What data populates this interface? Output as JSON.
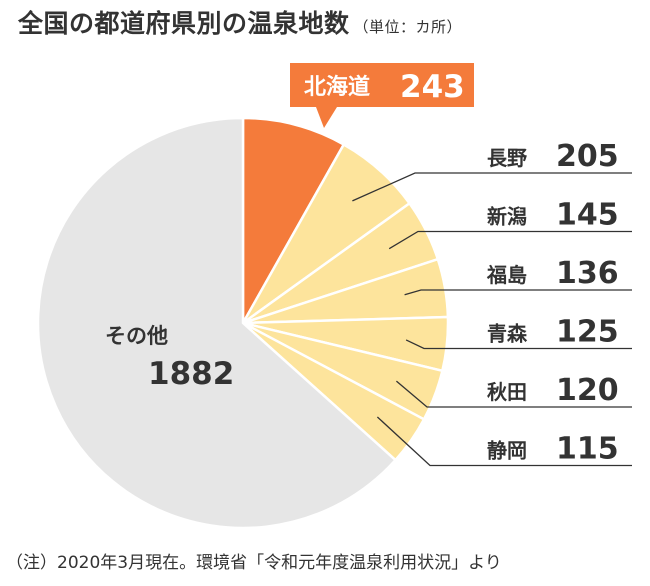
{
  "header": {
    "title": "全国の都道府県別の温泉地数",
    "unit": "（単位：カ所）"
  },
  "footnote": "（注）2020年3月現在。環境省「令和元年度温泉利用状況」より",
  "colors": {
    "highlight": "#f47b3b",
    "prefecture": "#fde49c",
    "other": "#e6e6e6",
    "text": "#333333",
    "leader": "#333333"
  },
  "chart_data": {
    "type": "pie",
    "title": "全国の都道府県別の温泉地数",
    "unit": "カ所",
    "start": "12 o'clock, clockwise",
    "slices": [
      {
        "label": "北海道",
        "value": 243,
        "value_label": "243",
        "highlight": true
      },
      {
        "label": "長野",
        "value": 205,
        "value_label": "205"
      },
      {
        "label": "新潟",
        "value": 145,
        "value_label": "145"
      },
      {
        "label": "福島",
        "value": 136,
        "value_label": "136"
      },
      {
        "label": "青森",
        "value": 125,
        "value_label": "125"
      },
      {
        "label": "秋田",
        "value": 120,
        "value_label": "120"
      },
      {
        "label": "静岡",
        "value": 115,
        "value_label": "115"
      },
      {
        "label": "その他",
        "value": 1882,
        "value_label": "1882",
        "other": true
      }
    ]
  }
}
